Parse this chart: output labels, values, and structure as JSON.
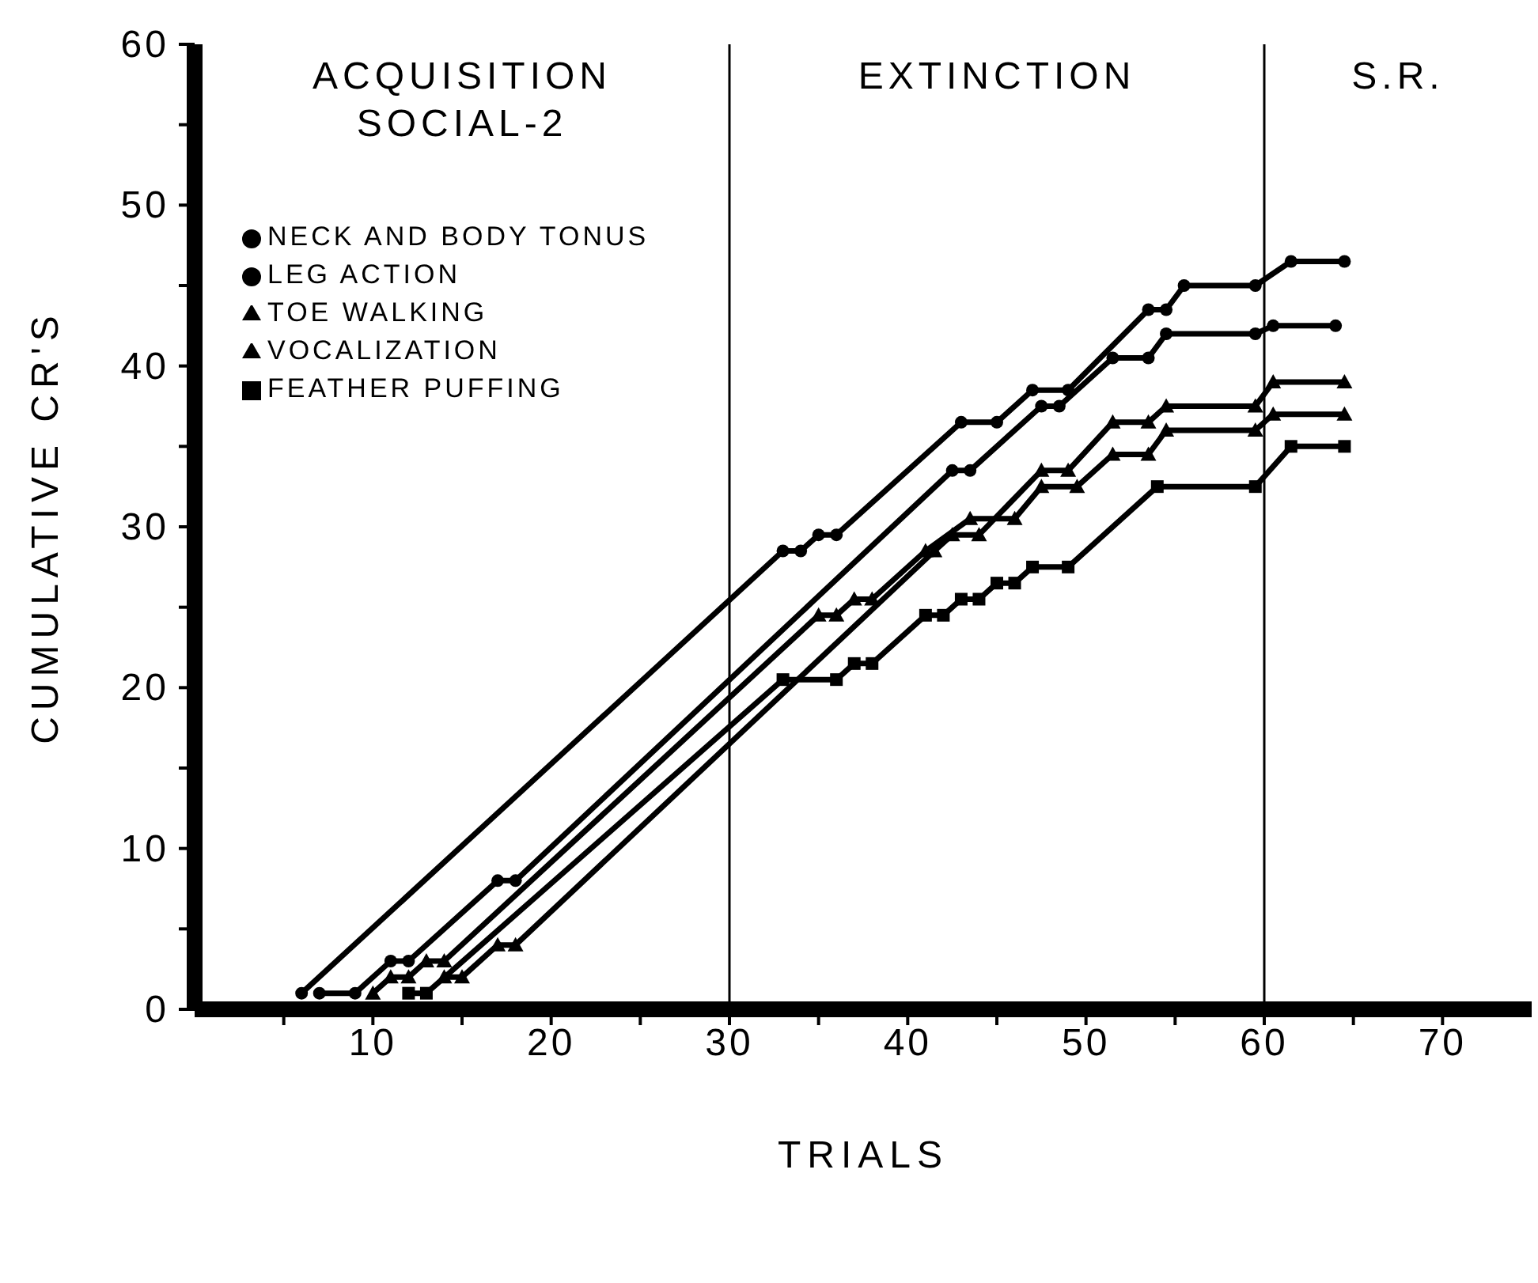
{
  "chart_data": {
    "type": "line",
    "xlabel": "TRIALS",
    "ylabel": "CUMULATIVE CR'S",
    "xlim": [
      0,
      75
    ],
    "xticks": [
      {
        "value": 5,
        "label": null
      },
      10,
      {
        "value": 15,
        "label": null
      },
      20,
      {
        "value": 25,
        "label": null
      },
      30,
      {
        "value": 35,
        "label": null
      },
      40,
      {
        "value": 45,
        "label": null
      },
      50,
      {
        "value": 55,
        "label": null
      },
      60,
      {
        "value": 65,
        "label": null
      },
      70
    ],
    "ylim": [
      0,
      60
    ],
    "yticks": [
      0,
      {
        "value": 5,
        "label": null
      },
      10,
      {
        "value": 15,
        "label": null
      },
      20,
      {
        "value": 25,
        "label": null
      },
      30,
      {
        "value": 35,
        "label": null
      },
      40,
      {
        "value": 45,
        "label": null
      },
      50,
      {
        "value": 55,
        "label": null
      },
      60
    ],
    "grid": false,
    "legend": "top left",
    "line_style": "solid",
    "annotations": [
      "ACQUISITION\nSOCIAL-2",
      "EXTINCTION",
      "S.R."
    ],
    "ref_lines": [
      {
        "axis": "x",
        "value": 30,
        "color": "#000000"
      },
      {
        "axis": "x",
        "value": 60,
        "color": "#000000"
      }
    ],
    "series": [
      {
        "name": "NECK AND BODY TONUS",
        "color": "#000000",
        "marker": "circle",
        "x": [
          6,
          33,
          34,
          35,
          36,
          43,
          45,
          47,
          49,
          53.5,
          54.5,
          55.5,
          59.5,
          61.5,
          64.5
        ],
        "values": [
          1,
          28.5,
          28.5,
          29.5,
          29.5,
          36.5,
          36.5,
          38.5,
          38.5,
          43.5,
          43.5,
          45,
          45,
          46.5,
          46.5
        ]
      },
      {
        "name": "LEG ACTION",
        "color": "#000000",
        "marker": "circle",
        "x": [
          7,
          9,
          11,
          12,
          17,
          18,
          42.5,
          43.5,
          47.5,
          48.5,
          51.5,
          53.5,
          54.5,
          59.5,
          60.5,
          64
        ],
        "values": [
          1,
          1,
          3,
          3,
          8,
          8,
          33.5,
          33.5,
          37.5,
          37.5,
          40.5,
          40.5,
          42,
          42,
          42.5,
          42.5
        ]
      },
      {
        "name": "TOE WALKING",
        "color": "#000000",
        "marker": "triangle",
        "x": [
          14,
          15,
          17,
          18,
          41.5,
          42.5,
          44,
          47.5,
          49,
          51.5,
          53.5,
          54.5,
          59.5,
          60.5,
          64.5
        ],
        "values": [
          2,
          2,
          4,
          4,
          28.5,
          29.5,
          29.5,
          33.5,
          33.5,
          36.5,
          36.5,
          37.5,
          37.5,
          39,
          39
        ]
      },
      {
        "name": "VOCALIZATION",
        "color": "#000000",
        "marker": "triangle",
        "x": [
          10,
          11,
          12,
          13,
          14,
          35,
          36,
          37,
          38,
          41,
          43.5,
          46,
          47.5,
          49.5,
          51.5,
          53.5,
          54.5,
          59.5,
          60.5,
          64.5
        ],
        "values": [
          1,
          2,
          2,
          3,
          3,
          24.5,
          24.5,
          25.5,
          25.5,
          28.5,
          30.5,
          30.5,
          32.5,
          32.5,
          34.5,
          34.5,
          36,
          36,
          37,
          37
        ]
      },
      {
        "name": "FEATHER PUFFING",
        "color": "#000000",
        "marker": "square",
        "x": [
          12,
          13,
          33,
          36,
          37,
          38,
          41,
          42,
          43,
          44,
          45,
          46,
          47,
          49,
          54,
          59.5,
          61.5,
          64.5
        ],
        "values": [
          1,
          1,
          20.5,
          20.5,
          21.5,
          21.5,
          24.5,
          24.5,
          25.5,
          25.5,
          26.5,
          26.5,
          27.5,
          27.5,
          32.5,
          32.5,
          35,
          35
        ]
      }
    ]
  }
}
